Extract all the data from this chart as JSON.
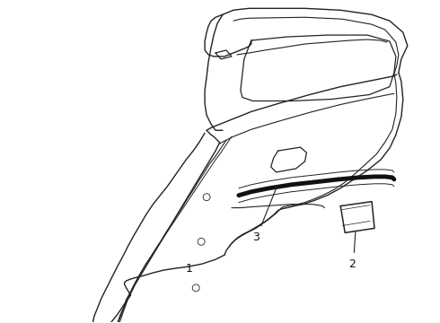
{
  "background_color": "#ffffff",
  "line_color": "#222222",
  "line_width": 1.0,
  "figure_width": 4.9,
  "figure_height": 3.6,
  "dpi": 100,
  "label_fontsize": 9,
  "label_color": "#111111"
}
